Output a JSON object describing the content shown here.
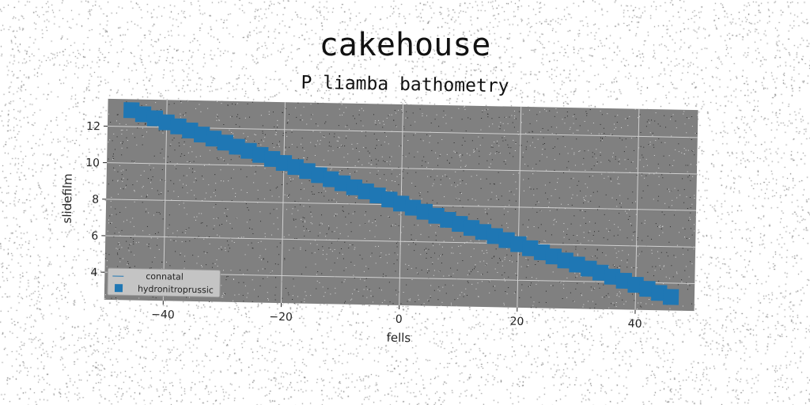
{
  "chart_data": {
    "type": "scatter",
    "title": "cakehouse",
    "subtitle": "P liamba bathometry",
    "xlabel": "fells",
    "ylabel": "slidefilm",
    "xlim": [
      -50,
      50
    ],
    "ylim": [
      2.5,
      13.5
    ],
    "xticks": [
      -40,
      -20,
      0,
      20,
      40
    ],
    "yticks": [
      4,
      6,
      8,
      10,
      12
    ],
    "grid": true,
    "legend": {
      "placement": "lower-left",
      "entries": [
        "connatal",
        "hydronitroprussic"
      ]
    },
    "series": [
      {
        "name": "connatal",
        "type": "line",
        "x": [],
        "y": []
      },
      {
        "name": "hydronitroprussic",
        "type": "scatter",
        "marker": "square",
        "x": [
          -46,
          -44,
          -42,
          -40,
          -38,
          -36,
          -34,
          -32,
          -30,
          -28,
          -26,
          -24,
          -22,
          -20,
          -18,
          -16,
          -14,
          -12,
          -10,
          -8,
          -6,
          -4,
          -2,
          0,
          2,
          4,
          6,
          8,
          10,
          12,
          14,
          16,
          18,
          20,
          22,
          24,
          26,
          28,
          30,
          32,
          34,
          36,
          38,
          40,
          42,
          44,
          46
        ],
        "y": [
          12.9,
          12.69,
          12.48,
          12.27,
          12.06,
          11.85,
          11.64,
          11.43,
          11.22,
          11.01,
          10.8,
          10.59,
          10.38,
          10.17,
          9.96,
          9.75,
          9.54,
          9.33,
          9.12,
          8.91,
          8.7,
          8.49,
          8.28,
          8.07,
          7.86,
          7.65,
          7.44,
          7.23,
          7.02,
          6.81,
          6.6,
          6.39,
          6.18,
          5.97,
          5.76,
          5.55,
          5.34,
          5.13,
          4.92,
          4.71,
          4.5,
          4.29,
          4.08,
          3.87,
          3.66,
          3.45,
          3.24
        ]
      }
    ]
  },
  "colors": {
    "plot_background": "#808080",
    "series": "#1f77b4",
    "grid": "#d0d0d0",
    "legend_background": "#c4c4c4"
  }
}
